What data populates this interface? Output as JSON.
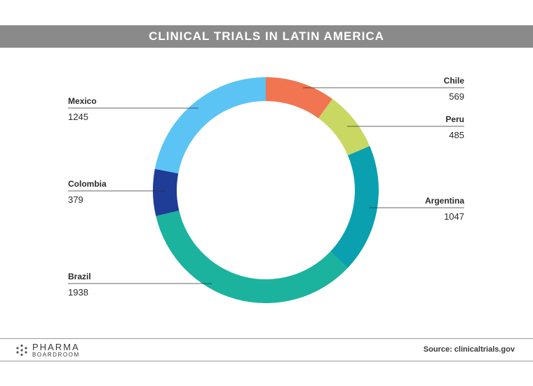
{
  "title": "CLINICAL TRIALS IN LATIN AMERICA",
  "chart_data": {
    "type": "pie",
    "variant": "donut",
    "series": [
      {
        "name": "Chile",
        "value": 569,
        "color": "#f07550",
        "label_side": "right"
      },
      {
        "name": "Peru",
        "value": 485,
        "color": "#c9d863",
        "label_side": "right"
      },
      {
        "name": "Argentina",
        "value": 1047,
        "color": "#0aa0b0",
        "label_side": "right"
      },
      {
        "name": "Brazil",
        "value": 1938,
        "color": "#1bb39e",
        "label_side": "left"
      },
      {
        "name": "Colombia",
        "value": 379,
        "color": "#1f3c96",
        "label_side": "left"
      },
      {
        "name": "Mexico",
        "value": 1245,
        "color": "#5bc4f4",
        "label_side": "left"
      }
    ]
  },
  "footer": {
    "logo_main": "PHARMA",
    "logo_sub": "BOARDROOM",
    "source": "Source: clinicaltrials.gov"
  },
  "colors": {
    "title_bar": "#8a8a8a",
    "text": "#2b2b2b",
    "leader": "#333333"
  }
}
